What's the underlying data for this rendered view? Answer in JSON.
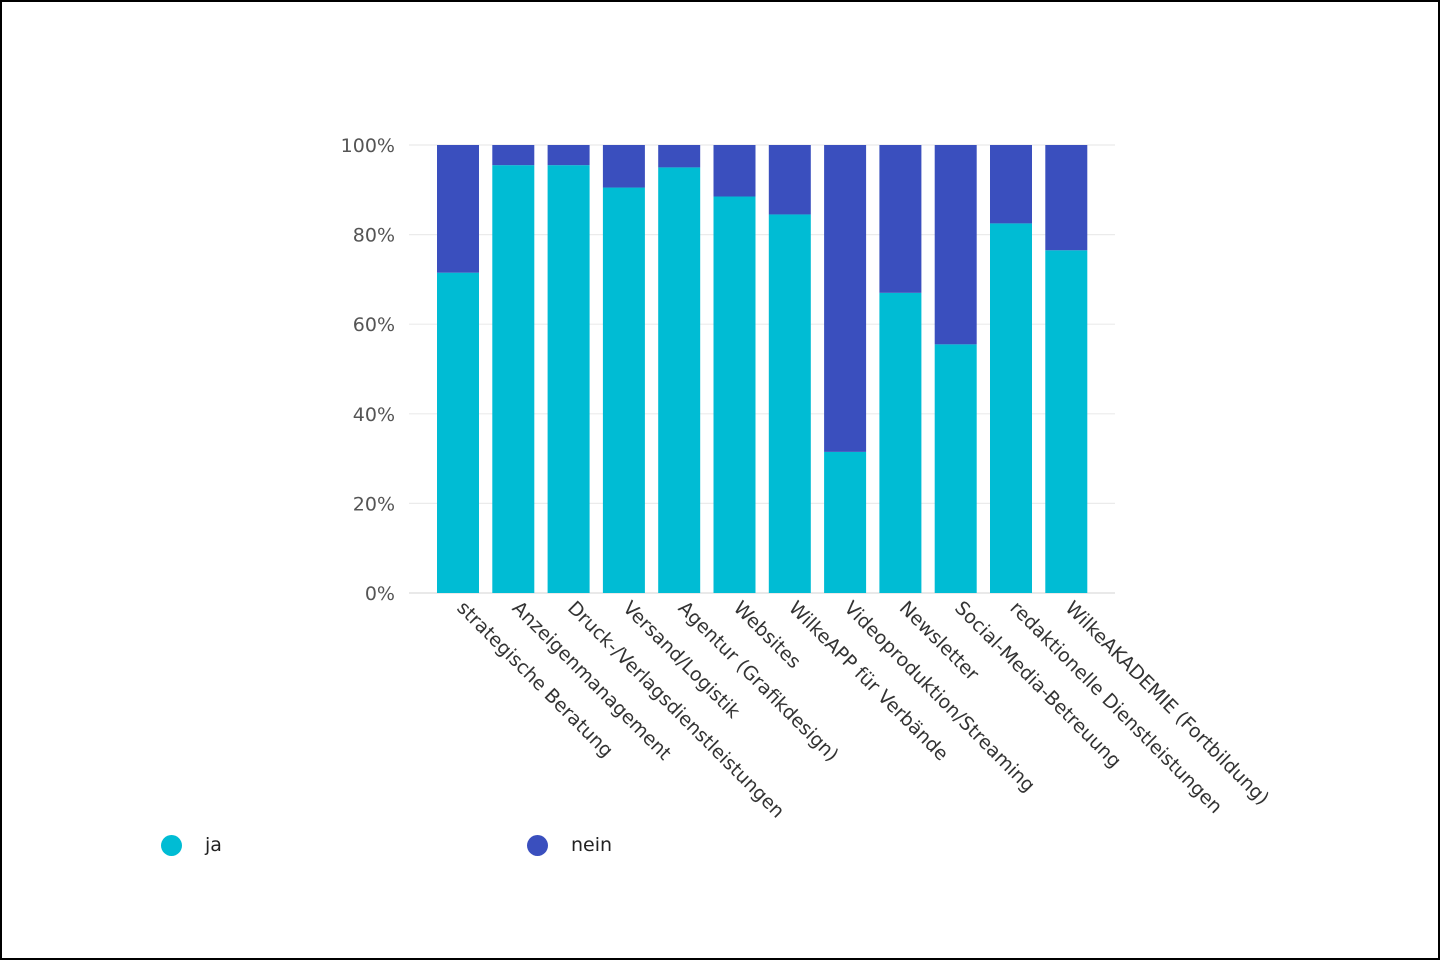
{
  "chart_data": {
    "type": "bar",
    "stacked": true,
    "normalized": true,
    "categories": [
      "strategische Beratung",
      "Anzeigenmanagement",
      "Druck-/Verlagsdienstleistungen",
      "Versand/Logistik",
      "Agentur (Grafikdesign)",
      "Websites",
      "WilkeAPP für Verbände",
      "Videoproduktion/Streaming",
      "Newsletter",
      "Social-Media-Betreuung",
      "redaktionelle Dienstleistungen",
      "WilkeAKADEMIE (Fortbildung)"
    ],
    "series": [
      {
        "name": "ja",
        "color": "#00BCD4",
        "values": [
          71.5,
          95.5,
          95.5,
          90.5,
          95,
          88.5,
          84.5,
          31.5,
          67,
          55.5,
          82.5,
          76.5
        ]
      },
      {
        "name": "nein",
        "color": "#3A4FBE",
        "values": [
          28.5,
          4.5,
          4.5,
          9.5,
          5,
          11.5,
          15.5,
          68.5,
          33,
          44.5,
          17.5,
          23.5
        ]
      }
    ],
    "yticks": [
      "0%",
      "20%",
      "40%",
      "60%",
      "80%",
      "100%"
    ],
    "ylim": [
      0,
      100
    ],
    "grid": true,
    "legend_position": "bottom-left"
  }
}
